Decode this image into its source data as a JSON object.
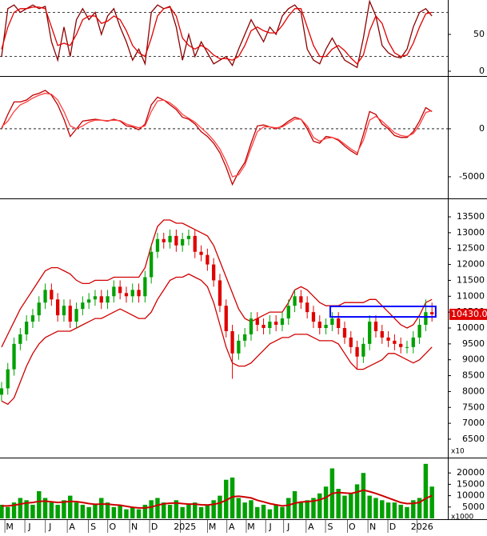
{
  "x_axis": {
    "xlim": [
      -0.25,
      71.54
    ],
    "xticks": [
      {
        "value": 1.3,
        "label": "M"
      },
      {
        "value": 4.5,
        "label": "J"
      },
      {
        "value": 7.8,
        "label": "J"
      },
      {
        "value": 11.3,
        "label": "A"
      },
      {
        "value": 14.7,
        "label": "S"
      },
      {
        "value": 17.8,
        "label": "O"
      },
      {
        "value": 21.3,
        "label": "N"
      },
      {
        "value": 24.5,
        "label": "D"
      },
      {
        "value": 29.4,
        "label": "2025"
      },
      {
        "value": 33.8,
        "label": "M"
      },
      {
        "value": 36.9,
        "label": "A"
      },
      {
        "value": 40,
        "label": "M"
      },
      {
        "value": 43.1,
        "label": "J"
      },
      {
        "value": 46,
        "label": "J"
      },
      {
        "value": 49.6,
        "label": "A"
      },
      {
        "value": 52.7,
        "label": "S"
      },
      {
        "value": 56.2,
        "label": "O"
      },
      {
        "value": 59.5,
        "label": "N"
      },
      {
        "value": 62.7,
        "label": "D"
      },
      {
        "value": 67.4,
        "label": "2026"
      }
    ]
  },
  "chart_data": [
    {
      "type": "line",
      "ylim": [
        -6.5,
        96.7
      ],
      "yticks": [
        0,
        50
      ],
      "levels": [
        20,
        80
      ],
      "series": [
        {
          "color": "#8b0000",
          "values": [
            20,
            85,
            90,
            80,
            85,
            90,
            85,
            88,
            40,
            15,
            60,
            20,
            70,
            85,
            70,
            80,
            50,
            75,
            85,
            60,
            40,
            15,
            30,
            10,
            80,
            90,
            85,
            88,
            60,
            15,
            50,
            20,
            40,
            25,
            10,
            15,
            20,
            8,
            30,
            50,
            70,
            55,
            40,
            60,
            50,
            75,
            85,
            90,
            80,
            30,
            15,
            10,
            30,
            45,
            30,
            15,
            10,
            5,
            45,
            95,
            75,
            35,
            25,
            20,
            18,
            30,
            60,
            80,
            85,
            75
          ]
        },
        {
          "color": "#e00000",
          "values": [
            30,
            60,
            80,
            85,
            85,
            87,
            87,
            85,
            60,
            35,
            38,
            35,
            50,
            70,
            75,
            75,
            65,
            68,
            75,
            70,
            55,
            35,
            25,
            20,
            45,
            75,
            85,
            87,
            75,
            45,
            35,
            30,
            35,
            30,
            22,
            17,
            17,
            15,
            20,
            35,
            55,
            60,
            55,
            52,
            52,
            62,
            75,
            85,
            85,
            60,
            35,
            20,
            20,
            30,
            35,
            28,
            18,
            10,
            22,
            55,
            75,
            65,
            40,
            25,
            20,
            22,
            38,
            60,
            78,
            80
          ]
        }
      ]
    },
    {
      "type": "line",
      "ylim": [
        -7170,
        5330
      ],
      "yticks": [
        0,
        -5000
      ],
      "levels": [
        0
      ],
      "series": [
        {
          "color": "#c00000",
          "values": [
            0,
            1500,
            2800,
            2800,
            3000,
            3500,
            3700,
            4000,
            3500,
            2500,
            1000,
            -800,
            0,
            800,
            900,
            1000,
            900,
            800,
            1000,
            800,
            300,
            200,
            -100,
            500,
            2500,
            3300,
            3000,
            2500,
            2000,
            1200,
            1000,
            500,
            -300,
            -800,
            -1500,
            -2500,
            -4000,
            -5800,
            -4500,
            -3500,
            -1500,
            300,
            400,
            200,
            0,
            300,
            800,
            1200,
            1000,
            0,
            -1300,
            -1500,
            -800,
            -900,
            -1200,
            -1800,
            -2300,
            -2700,
            -600,
            1800,
            1500,
            500,
            0,
            -700,
            -900,
            -900,
            -300,
            800,
            2200,
            1800
          ]
        },
        {
          "color": "#ff4040",
          "values": [
            200,
            800,
            1800,
            2500,
            2800,
            3200,
            3500,
            3700,
            3600,
            3000,
            1800,
            300,
            0,
            300,
            700,
            900,
            900,
            850,
            900,
            850,
            500,
            300,
            100,
            300,
            1800,
            2900,
            3000,
            2700,
            2200,
            1500,
            1100,
            700,
            100,
            -500,
            -1200,
            -2100,
            -3400,
            -5000,
            -4800,
            -3800,
            -2000,
            -300,
            200,
            200,
            100,
            200,
            600,
            1000,
            1000,
            300,
            -900,
            -1300,
            -1000,
            -900,
            -1100,
            -1600,
            -2100,
            -2500,
            -1200,
            900,
            1300,
            800,
            200,
            -400,
            -700,
            -800,
            -500,
            400,
            1700,
            1900
          ]
        }
      ]
    },
    {
      "type": "candlestick",
      "ylim": [
        5970,
        14030
      ],
      "yticks": [
        6500,
        7000,
        7500,
        8000,
        8500,
        9000,
        9500,
        10000,
        10500,
        11000,
        11500,
        12000,
        12500,
        13000,
        13500
      ],
      "up_color": "#00a000",
      "down_color": "#e00000",
      "unit_label": "x10",
      "price_tag": {
        "value": 10430,
        "label": "10430.0",
        "color": "#e00000"
      },
      "box": {
        "x": [
          52.7,
          69.6
        ],
        "y": [
          10350,
          10680
        ],
        "color": "#0000ff"
      },
      "open": [
        7900,
        8100,
        8700,
        9500,
        9800,
        10200,
        10400,
        10800,
        11200,
        10900,
        10400,
        10700,
        10200,
        10600,
        10800,
        10900,
        11000,
        10800,
        11000,
        11300,
        11100,
        11000,
        11200,
        11000,
        11600,
        12400,
        12800,
        12700,
        12900,
        12600,
        12800,
        12900,
        12400,
        12300,
        12000,
        11500,
        10700,
        9900,
        9200,
        9600,
        9800,
        10300,
        10100,
        10000,
        10200,
        10100,
        10300,
        10700,
        11000,
        10800,
        10500,
        10200,
        10000,
        10100,
        10300,
        10000,
        9700,
        9400,
        9100,
        9500,
        10200,
        9900,
        9700,
        9600,
        9500,
        9400,
        9400,
        9700,
        10100,
        10500
      ],
      "high": [
        8300,
        8900,
        9700,
        10000,
        10400,
        10600,
        11000,
        11400,
        11400,
        11100,
        10900,
        10900,
        10800,
        11000,
        11100,
        11200,
        11200,
        11200,
        11500,
        11500,
        11300,
        11400,
        11400,
        11800,
        12600,
        13000,
        13000,
        13100,
        13100,
        13000,
        13100,
        13100,
        12600,
        12500,
        12200,
        11700,
        10900,
        10100,
        9800,
        10000,
        10500,
        10500,
        10300,
        10400,
        10400,
        10500,
        10900,
        11200,
        11200,
        11000,
        10700,
        10400,
        10300,
        10500,
        10500,
        10200,
        9900,
        9600,
        9700,
        10400,
        10400,
        10100,
        9900,
        9800,
        9700,
        9600,
        9900,
        10300,
        10900,
        10800
      ],
      "low": [
        7700,
        7900,
        8500,
        9300,
        9600,
        10000,
        10200,
        10600,
        10700,
        10200,
        10200,
        10000,
        10000,
        10400,
        10600,
        10700,
        10600,
        10600,
        10800,
        10900,
        10800,
        10800,
        10800,
        10800,
        11400,
        12200,
        12500,
        12500,
        12400,
        12400,
        12600,
        12200,
        12100,
        11800,
        11300,
        10500,
        9700,
        8400,
        9000,
        9400,
        9600,
        9900,
        9800,
        9800,
        9900,
        9900,
        10100,
        10500,
        10600,
        10300,
        10000,
        9800,
        9800,
        9900,
        9800,
        9500,
        9200,
        8700,
        8900,
        9300,
        9700,
        9500,
        9400,
        9300,
        9200,
        9200,
        9200,
        9500,
        9900,
        10200
      ],
      "close": [
        8100,
        8700,
        9500,
        9800,
        10200,
        10400,
        10800,
        11200,
        10900,
        10400,
        10700,
        10200,
        10600,
        10800,
        10900,
        11000,
        10800,
        11000,
        11300,
        11100,
        11000,
        11200,
        11000,
        11600,
        12400,
        12800,
        12700,
        12900,
        12600,
        12800,
        12900,
        12400,
        12300,
        12000,
        11500,
        10700,
        9900,
        9200,
        9600,
        9800,
        10300,
        10100,
        10000,
        10200,
        10100,
        10300,
        10700,
        11000,
        10800,
        10500,
        10200,
        10000,
        10100,
        10300,
        10000,
        9700,
        9400,
        9100,
        9500,
        10200,
        9900,
        9700,
        9600,
        9500,
        9400,
        9400,
        9700,
        10100,
        10500,
        10430
      ],
      "series": [
        {
          "color": "#d00000",
          "values": [
            9400,
            9800,
            10200,
            10600,
            10900,
            11200,
            11500,
            11800,
            11900,
            11900,
            11800,
            11700,
            11500,
            11400,
            11400,
            11500,
            11500,
            11500,
            11600,
            11600,
            11600,
            11600,
            11600,
            11900,
            12600,
            13200,
            13400,
            13400,
            13300,
            13300,
            13200,
            13100,
            13000,
            12900,
            12600,
            12100,
            11600,
            11100,
            10600,
            10300,
            10200,
            10300,
            10400,
            10500,
            10500,
            10500,
            10800,
            11200,
            11300,
            11200,
            11000,
            10800,
            10700,
            10700,
            10700,
            10800,
            10800,
            10800,
            10800,
            10900,
            10900,
            10700,
            10500,
            10300,
            10100,
            10000,
            10100,
            10400,
            10800,
            10900
          ]
        },
        {
          "color": "#d00000",
          "values": [
            7700,
            7600,
            7800,
            8300,
            8800,
            9200,
            9500,
            9700,
            9800,
            9900,
            9900,
            9900,
            10000,
            10100,
            10200,
            10300,
            10300,
            10400,
            10500,
            10600,
            10500,
            10400,
            10300,
            10300,
            10500,
            10900,
            11200,
            11500,
            11600,
            11600,
            11700,
            11600,
            11500,
            11300,
            10800,
            10100,
            9400,
            8900,
            8800,
            8800,
            8900,
            9100,
            9300,
            9500,
            9600,
            9700,
            9700,
            9800,
            9800,
            9800,
            9700,
            9600,
            9600,
            9600,
            9500,
            9200,
            8900,
            8700,
            8700,
            8800,
            8900,
            9000,
            9200,
            9200,
            9100,
            9000,
            8900,
            9000,
            9200,
            9400
          ]
        }
      ]
    },
    {
      "type": "bar",
      "ylim": [
        0,
        25700
      ],
      "yticks": [
        5000,
        10000,
        15000,
        20000
      ],
      "color": "#00a000",
      "unit_label": "x1000",
      "values": [
        6000,
        5000,
        7000,
        9000,
        8000,
        6000,
        12000,
        9000,
        7000,
        6000,
        8000,
        10000,
        7000,
        6000,
        5000,
        6000,
        9000,
        7000,
        5000,
        6000,
        4000,
        5000,
        4000,
        6000,
        8000,
        9000,
        7000,
        6000,
        8000,
        5000,
        6000,
        7000,
        5000,
        6000,
        8000,
        10000,
        17000,
        18000,
        9000,
        7000,
        8000,
        5000,
        6000,
        4000,
        6000,
        5000,
        9000,
        12000,
        7000,
        8000,
        9000,
        11000,
        14000,
        22000,
        13000,
        10000,
        11000,
        15000,
        20000,
        10000,
        9000,
        8000,
        7000,
        7000,
        6000,
        5000,
        8000,
        9000,
        24000,
        14000
      ],
      "series": [
        {
          "color": "#cc0000",
          "values": [
            5500,
            5500,
            5800,
            6300,
            6800,
            7000,
            7500,
            7600,
            7300,
            7000,
            7200,
            7500,
            7400,
            7000,
            6500,
            6200,
            6300,
            6300,
            6000,
            5800,
            5300,
            4900,
            4600,
            4600,
            5000,
            5800,
            6400,
            6700,
            6800,
            6500,
            6300,
            6300,
            6000,
            5900,
            6200,
            6800,
            8000,
            9500,
            9800,
            9400,
            9000,
            8000,
            7300,
            6500,
            6000,
            5500,
            5800,
            6700,
            7200,
            7400,
            7600,
            8200,
            9200,
            11000,
            11400,
            11200,
            11000,
            11600,
            12500,
            11800,
            11000,
            10000,
            9000,
            8000,
            7000,
            6500,
            6600,
            7000,
            8800,
            10000
          ]
        }
      ]
    }
  ]
}
